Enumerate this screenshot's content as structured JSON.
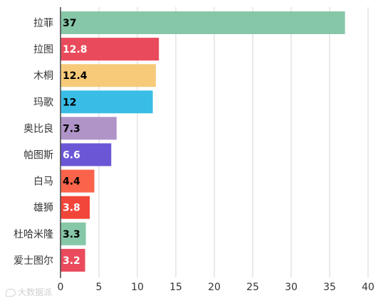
{
  "chart_data": {
    "type": "bar",
    "orientation": "horizontal",
    "categories": [
      "拉菲",
      "拉图",
      "木桐",
      "玛歌",
      "奥比良",
      "帕图斯",
      "白马",
      "雄狮",
      "杜哈米隆",
      "爱士图尔"
    ],
    "values": [
      37,
      12.8,
      12.4,
      12,
      7.3,
      6.6,
      4.4,
      3.8,
      3.3,
      3.2
    ],
    "value_labels": [
      "37",
      "12.8",
      "12.4",
      "12",
      "7.3",
      "6.6",
      "4.4",
      "3.8",
      "3.3",
      "3.2"
    ],
    "colors": [
      "#86c7a8",
      "#e94b5c",
      "#f7ca7a",
      "#39bde6",
      "#b094c8",
      "#6b57d6",
      "#fb644a",
      "#f2463a",
      "#86c7a8",
      "#e94b5c"
    ],
    "label_colors": [
      "#000000",
      "#ffffff",
      "#000000",
      "#000000",
      "#000000",
      "#ffffff",
      "#000000",
      "#ffffff",
      "#000000",
      "#ffffff"
    ],
    "xlim": [
      0,
      40
    ],
    "xticks": [
      "0",
      "5",
      "10",
      "15",
      "20",
      "25",
      "30",
      "35",
      "40"
    ],
    "grid": true,
    "title": "",
    "xlabel": "",
    "ylabel": ""
  },
  "watermark": "大数据派"
}
